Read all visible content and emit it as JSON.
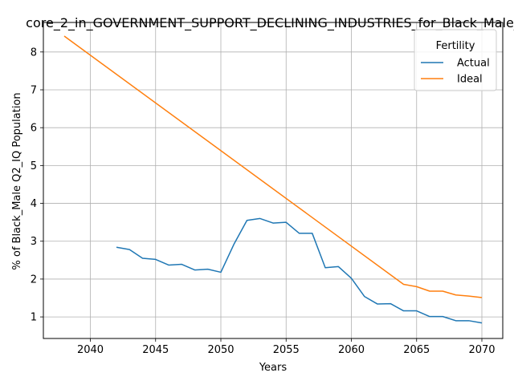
{
  "chart_data": {
    "type": "line",
    "title": "core_2_in_GOVERNMENT_SUPPORT_DECLINING_INDUSTRIES_for_Black_Male_",
    "xlabel": "Years",
    "ylabel": "% of Black_Male Q2_IQ Population",
    "xlim": [
      2036.4,
      2071.6
    ],
    "ylim": [
      0.43,
      8.78
    ],
    "xticks": [
      2040,
      2045,
      2050,
      2055,
      2060,
      2065,
      2070
    ],
    "yticks": [
      1,
      2,
      3,
      4,
      5,
      6,
      7,
      8
    ],
    "grid": true,
    "legend": {
      "title": "Fertility",
      "placement": "top-right"
    },
    "series": [
      {
        "name": "Actual",
        "color": "#1f77b4",
        "x": [
          2042,
          2043,
          2044,
          2045,
          2046,
          2047,
          2048,
          2049,
          2050,
          2051,
          2052,
          2053,
          2054,
          2055,
          2056,
          2057,
          2058,
          2059,
          2060,
          2061,
          2062,
          2063,
          2064,
          2065,
          2066,
          2067,
          2068,
          2069,
          2070
        ],
        "y": [
          2.84,
          2.78,
          2.55,
          2.52,
          2.37,
          2.39,
          2.24,
          2.26,
          2.18,
          2.92,
          3.55,
          3.6,
          3.48,
          3.5,
          3.21,
          3.21,
          2.3,
          2.33,
          2.02,
          1.54,
          1.34,
          1.35,
          1.16,
          1.16,
          1.01,
          1.01,
          0.9,
          0.9,
          0.84
        ]
      },
      {
        "name": "Ideal",
        "color": "#ff7f0e",
        "x": [
          2038,
          2064,
          2065,
          2066,
          2067,
          2068,
          2069,
          2070
        ],
        "y": [
          8.42,
          1.86,
          1.8,
          1.68,
          1.68,
          1.58,
          1.55,
          1.51
        ]
      }
    ]
  }
}
